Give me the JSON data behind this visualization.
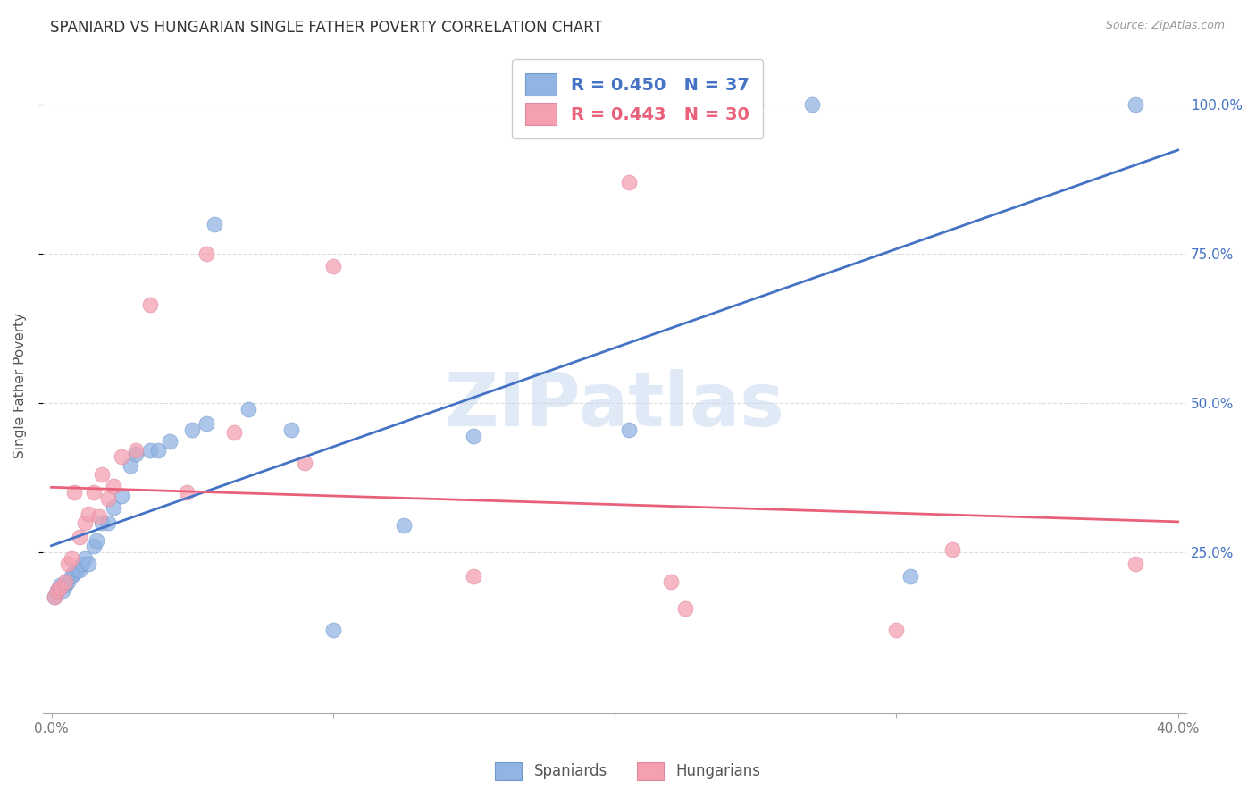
{
  "title": "SPANIARD VS HUNGARIAN SINGLE FATHER POVERTY CORRELATION CHART",
  "source": "Source: ZipAtlas.com",
  "ylabel": "Single Father Poverty",
  "watermark": "ZIPatlas",
  "blue_color": "#92B4E3",
  "pink_color": "#F4A0B0",
  "blue_line_color": "#4472C4",
  "pink_line_color": "#E8607A",
  "blue_marker_edge": "#7099CC",
  "pink_marker_edge": "#E088A0",
  "grid_color": "#DDDDDD",
  "sp_x": [
    0.001,
    0.002,
    0.003,
    0.004,
    0.005,
    0.006,
    0.007,
    0.008,
    0.009,
    0.01,
    0.011,
    0.012,
    0.013,
    0.015,
    0.016,
    0.018,
    0.02,
    0.022,
    0.025,
    0.028,
    0.03,
    0.035,
    0.038,
    0.042,
    0.05,
    0.055,
    0.058,
    0.07,
    0.085,
    0.1,
    0.125,
    0.15,
    0.205,
    0.25,
    0.27,
    0.305,
    0.385
  ],
  "sp_y": [
    0.175,
    0.185,
    0.195,
    0.185,
    0.195,
    0.2,
    0.21,
    0.215,
    0.22,
    0.22,
    0.23,
    0.24,
    0.23,
    0.26,
    0.27,
    0.3,
    0.3,
    0.325,
    0.345,
    0.395,
    0.415,
    0.42,
    0.42,
    0.435,
    0.455,
    0.465,
    0.8,
    0.49,
    0.455,
    0.12,
    0.295,
    0.445,
    0.455,
    1.0,
    1.0,
    0.21,
    1.0
  ],
  "hu_x": [
    0.001,
    0.002,
    0.003,
    0.005,
    0.006,
    0.007,
    0.008,
    0.01,
    0.012,
    0.013,
    0.015,
    0.017,
    0.018,
    0.02,
    0.022,
    0.025,
    0.03,
    0.035,
    0.048,
    0.055,
    0.065,
    0.09,
    0.1,
    0.15,
    0.205,
    0.22,
    0.225,
    0.3,
    0.32,
    0.385
  ],
  "hu_y": [
    0.175,
    0.185,
    0.19,
    0.2,
    0.23,
    0.24,
    0.35,
    0.275,
    0.3,
    0.315,
    0.35,
    0.31,
    0.38,
    0.34,
    0.36,
    0.41,
    0.42,
    0.665,
    0.35,
    0.75,
    0.45,
    0.4,
    0.73,
    0.21,
    0.87,
    0.2,
    0.155,
    0.12,
    0.255,
    0.23
  ],
  "xlim": [
    -0.003,
    0.403
  ],
  "ylim": [
    -0.02,
    1.08
  ],
  "xticks": [
    0.0,
    0.1,
    0.2,
    0.3,
    0.4
  ],
  "xticklabels": [
    "0.0%",
    "",
    "",
    "",
    "40.0%"
  ],
  "yticks": [
    0.25,
    0.5,
    0.75,
    1.0
  ],
  "yticklabels_right": [
    "25.0%",
    "50.0%",
    "75.0%",
    "100.0%"
  ]
}
